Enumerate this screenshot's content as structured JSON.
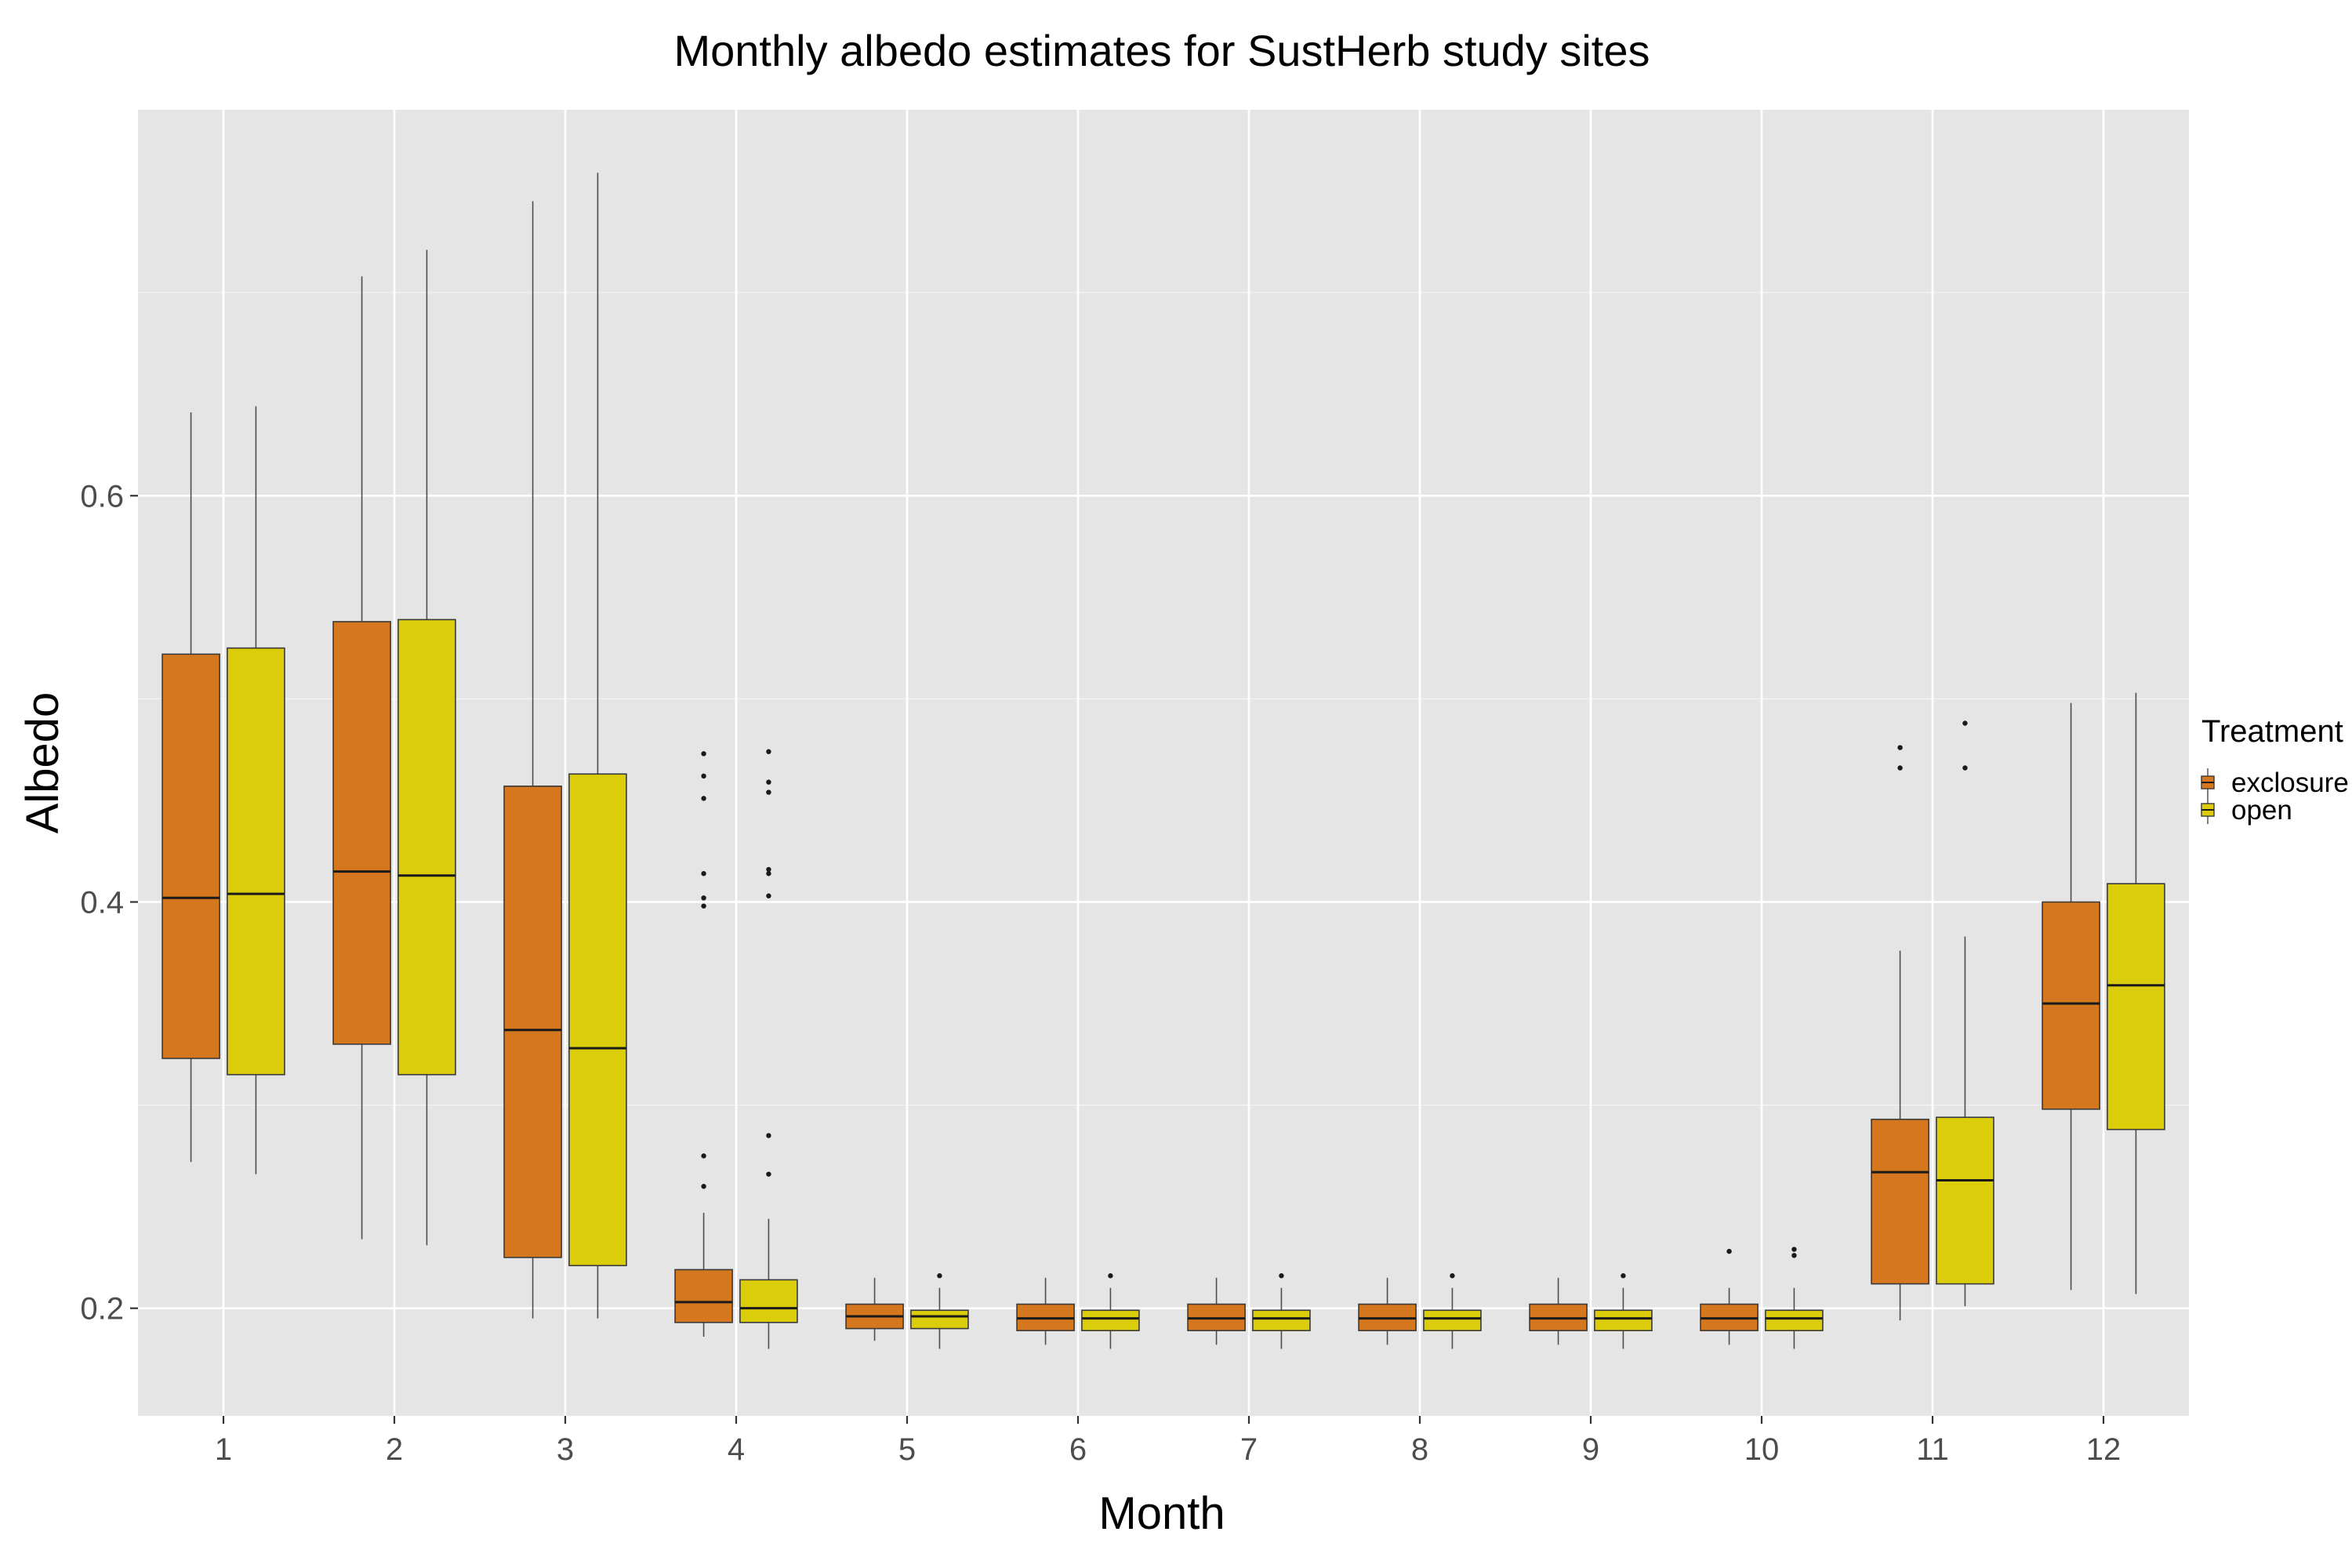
{
  "chart_data": {
    "type": "boxplot",
    "title": "Monthly albedo estimates for SustHerb study sites",
    "xlabel": "Month",
    "ylabel": "Albedo",
    "categories": [
      "1",
      "2",
      "3",
      "4",
      "5",
      "6",
      "7",
      "8",
      "9",
      "10",
      "11",
      "12"
    ],
    "yticks": [
      0.2,
      0.4,
      0.6
    ],
    "ytick_labels": [
      "0.2",
      "0.4",
      "0.6"
    ],
    "ylim": [
      0.147,
      0.79
    ],
    "grid": true,
    "legend": {
      "title": "Treatment",
      "placement": "right",
      "entries": [
        "exclosure",
        "open"
      ]
    },
    "series": [
      {
        "name": "exclosure",
        "color": "#d4771f",
        "boxes": [
          {
            "month": "1",
            "whisker_low": 0.272,
            "q1": 0.323,
            "median": 0.402,
            "q3": 0.522,
            "whisker_high": 0.641,
            "outliers": []
          },
          {
            "month": "2",
            "whisker_low": 0.234,
            "q1": 0.33,
            "median": 0.415,
            "q3": 0.538,
            "whisker_high": 0.708,
            "outliers": []
          },
          {
            "month": "3",
            "whisker_low": 0.195,
            "q1": 0.225,
            "median": 0.337,
            "q3": 0.457,
            "whisker_high": 0.745,
            "outliers": []
          },
          {
            "month": "4",
            "whisker_low": 0.186,
            "q1": 0.193,
            "median": 0.203,
            "q3": 0.219,
            "whisker_high": 0.247,
            "outliers": [
              0.26,
              0.275,
              0.398,
              0.402,
              0.414,
              0.451,
              0.462,
              0.473
            ]
          },
          {
            "month": "5",
            "whisker_low": 0.184,
            "q1": 0.19,
            "median": 0.196,
            "q3": 0.202,
            "whisker_high": 0.215,
            "outliers": []
          },
          {
            "month": "6",
            "whisker_low": 0.182,
            "q1": 0.189,
            "median": 0.195,
            "q3": 0.202,
            "whisker_high": 0.215,
            "outliers": []
          },
          {
            "month": "7",
            "whisker_low": 0.182,
            "q1": 0.189,
            "median": 0.195,
            "q3": 0.202,
            "whisker_high": 0.215,
            "outliers": []
          },
          {
            "month": "8",
            "whisker_low": 0.182,
            "q1": 0.189,
            "median": 0.195,
            "q3": 0.202,
            "whisker_high": 0.215,
            "outliers": []
          },
          {
            "month": "9",
            "whisker_low": 0.182,
            "q1": 0.189,
            "median": 0.195,
            "q3": 0.202,
            "whisker_high": 0.215,
            "outliers": []
          },
          {
            "month": "10",
            "whisker_low": 0.182,
            "q1": 0.189,
            "median": 0.195,
            "q3": 0.202,
            "whisker_high": 0.21,
            "outliers": [
              0.228
            ]
          },
          {
            "month": "11",
            "whisker_low": 0.194,
            "q1": 0.212,
            "median": 0.267,
            "q3": 0.293,
            "whisker_high": 0.376,
            "outliers": [
              0.466,
              0.476
            ]
          },
          {
            "month": "12",
            "whisker_low": 0.209,
            "q1": 0.298,
            "median": 0.35,
            "q3": 0.4,
            "whisker_high": 0.498,
            "outliers": []
          }
        ]
      },
      {
        "name": "open",
        "color": "#dbcd09",
        "boxes": [
          {
            "month": "1",
            "whisker_low": 0.266,
            "q1": 0.315,
            "median": 0.404,
            "q3": 0.525,
            "whisker_high": 0.644,
            "outliers": []
          },
          {
            "month": "2",
            "whisker_low": 0.231,
            "q1": 0.315,
            "median": 0.413,
            "q3": 0.539,
            "whisker_high": 0.721,
            "outliers": []
          },
          {
            "month": "3",
            "whisker_low": 0.195,
            "q1": 0.221,
            "median": 0.328,
            "q3": 0.463,
            "whisker_high": 0.759,
            "outliers": []
          },
          {
            "month": "4",
            "whisker_low": 0.18,
            "q1": 0.193,
            "median": 0.2,
            "q3": 0.214,
            "whisker_high": 0.244,
            "outliers": [
              0.266,
              0.285,
              0.403,
              0.414,
              0.416,
              0.454,
              0.459,
              0.474
            ]
          },
          {
            "month": "5",
            "whisker_low": 0.18,
            "q1": 0.19,
            "median": 0.196,
            "q3": 0.199,
            "whisker_high": 0.21,
            "outliers": [
              0.216
            ]
          },
          {
            "month": "6",
            "whisker_low": 0.18,
            "q1": 0.189,
            "median": 0.195,
            "q3": 0.199,
            "whisker_high": 0.21,
            "outliers": [
              0.216
            ]
          },
          {
            "month": "7",
            "whisker_low": 0.18,
            "q1": 0.189,
            "median": 0.195,
            "q3": 0.199,
            "whisker_high": 0.21,
            "outliers": [
              0.216
            ]
          },
          {
            "month": "8",
            "whisker_low": 0.18,
            "q1": 0.189,
            "median": 0.195,
            "q3": 0.199,
            "whisker_high": 0.21,
            "outliers": [
              0.216
            ]
          },
          {
            "month": "9",
            "whisker_low": 0.18,
            "q1": 0.189,
            "median": 0.195,
            "q3": 0.199,
            "whisker_high": 0.21,
            "outliers": [
              0.216
            ]
          },
          {
            "month": "10",
            "whisker_low": 0.18,
            "q1": 0.189,
            "median": 0.195,
            "q3": 0.199,
            "whisker_high": 0.21,
            "outliers": [
              0.226,
              0.229
            ]
          },
          {
            "month": "11",
            "whisker_low": 0.201,
            "q1": 0.212,
            "median": 0.263,
            "q3": 0.294,
            "whisker_high": 0.383,
            "outliers": [
              0.466,
              0.488
            ]
          },
          {
            "month": "12",
            "whisker_low": 0.207,
            "q1": 0.288,
            "median": 0.359,
            "q3": 0.409,
            "whisker_high": 0.503,
            "outliers": []
          }
        ]
      }
    ]
  }
}
